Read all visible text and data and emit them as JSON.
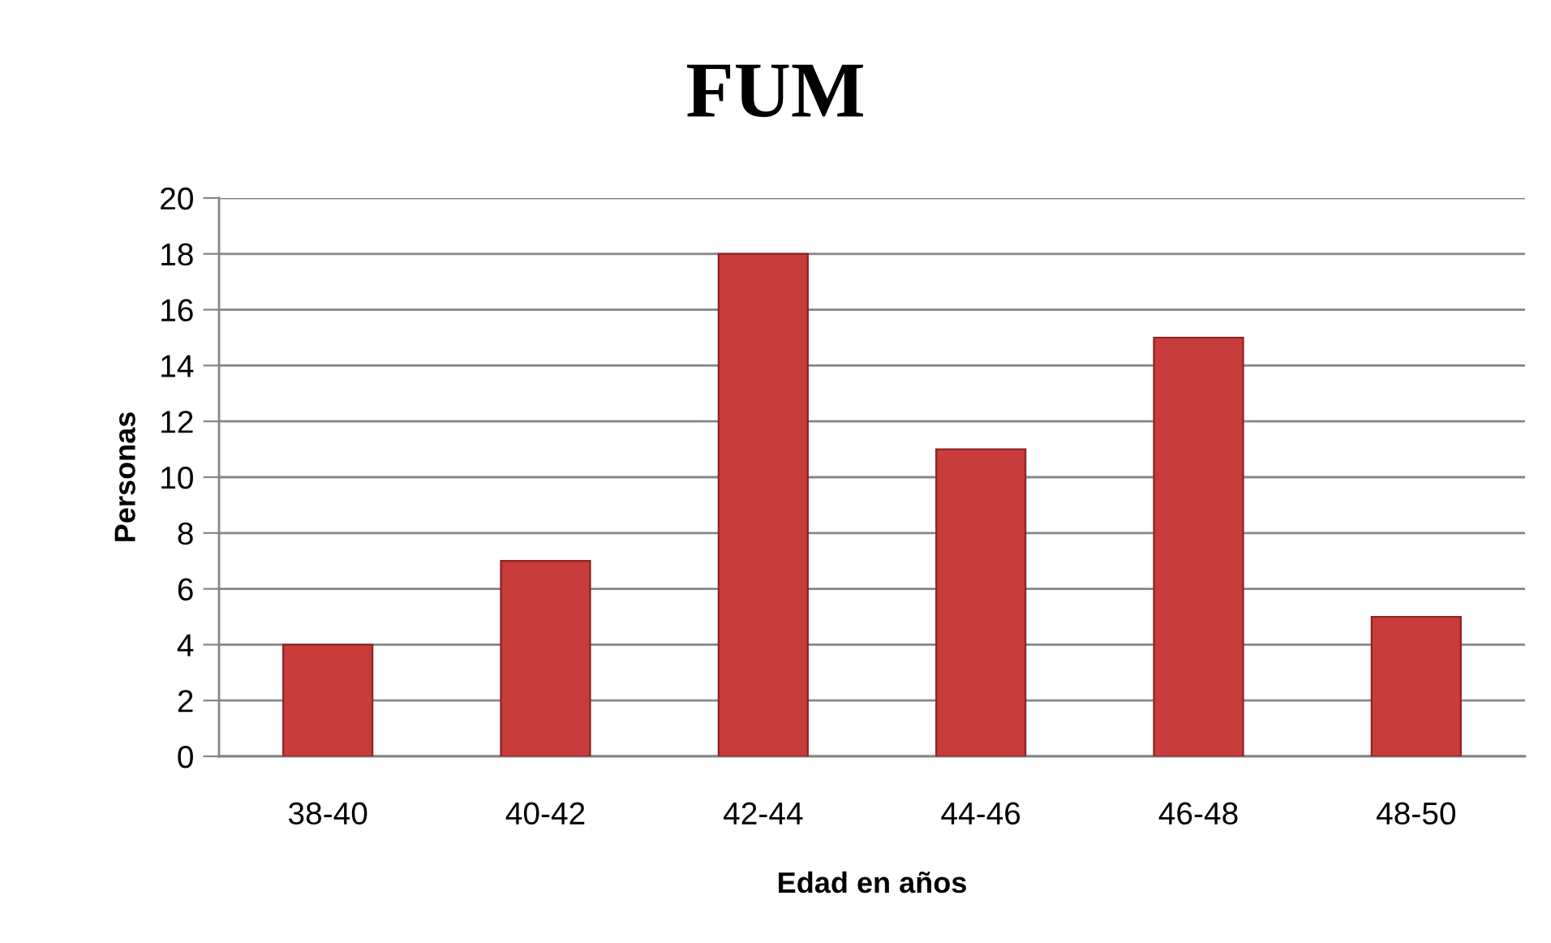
{
  "chart_data": {
    "type": "bar",
    "title": "FUM",
    "xlabel": "Edad en años",
    "ylabel": "Personas",
    "categories": [
      "38-40",
      "40-42",
      "42-44",
      "44-46",
      "46-48",
      "48-50"
    ],
    "values": [
      4,
      7,
      18,
      11,
      15,
      5
    ],
    "color": "#c83c3c",
    "ylim": [
      0,
      20
    ],
    "yticks": [
      0,
      2,
      4,
      6,
      8,
      10,
      12,
      14,
      16,
      18,
      20
    ],
    "grid": "y"
  }
}
